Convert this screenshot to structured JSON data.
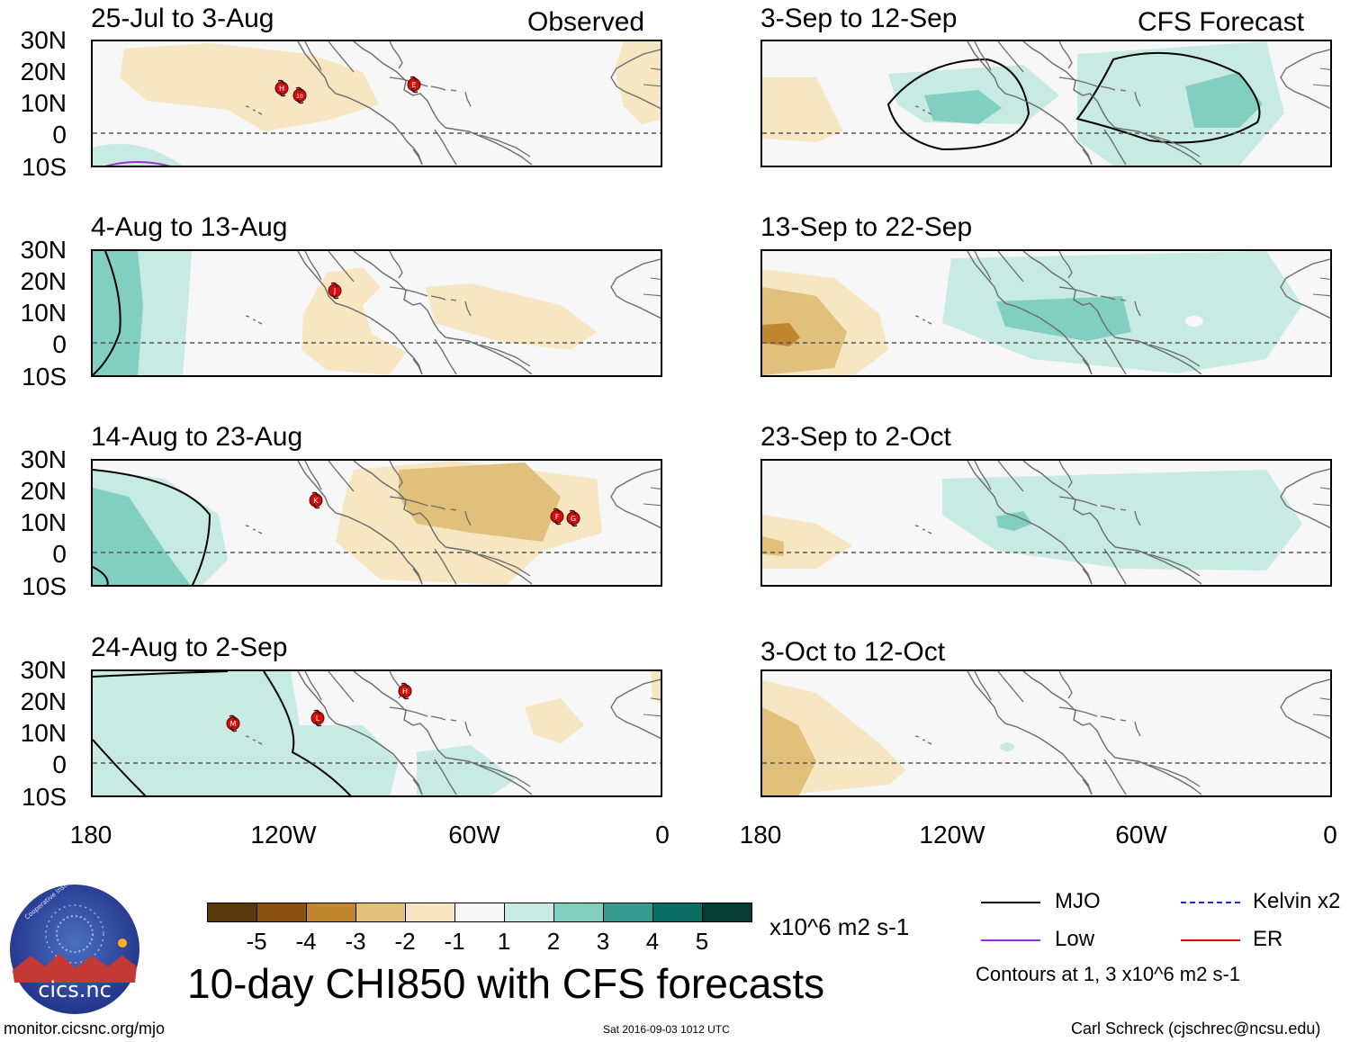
{
  "labels": {
    "observed": "Observed",
    "forecast": "CFS Forecast",
    "lat_ticks": [
      "30N",
      "20N",
      "10N",
      "0",
      "10S"
    ],
    "lon_ticks": [
      "180",
      "120W",
      "60W",
      "0"
    ]
  },
  "panels": [
    {
      "title": "25-Jul to 3-Aug"
    },
    {
      "title": "4-Aug to 13-Aug"
    },
    {
      "title": "14-Aug to 23-Aug"
    },
    {
      "title": "24-Aug to 2-Sep"
    },
    {
      "title": "3-Sep to 12-Sep"
    },
    {
      "title": "13-Sep to 22-Sep"
    },
    {
      "title": "23-Sep to 2-Oct"
    },
    {
      "title": "3-Oct to 12-Oct"
    }
  ],
  "storms": [
    {
      "panel": 0,
      "letter": "H"
    },
    {
      "panel": 0,
      "letter": "10"
    },
    {
      "panel": 0,
      "letter": "E"
    },
    {
      "panel": 1,
      "letter": "J"
    },
    {
      "panel": 2,
      "letter": "K"
    },
    {
      "panel": 2,
      "letter": "F"
    },
    {
      "panel": 2,
      "letter": "G"
    },
    {
      "panel": 3,
      "letter": "M"
    },
    {
      "panel": 3,
      "letter": "L"
    },
    {
      "panel": 3,
      "letter": "H"
    }
  ],
  "colorbar": {
    "colors": [
      "#5a3a0c",
      "#8a5212",
      "#c28630",
      "#e0c07a",
      "#f6e6c2",
      "#f7f7f7",
      "#c7eae2",
      "#81cfc1",
      "#379c8f",
      "#0b6e62",
      "#053d33"
    ],
    "ticks": [
      "-5",
      "-4",
      "-3",
      "-2",
      "-1",
      "1",
      "2",
      "3",
      "4",
      "5"
    ],
    "units": "x10^6 m2 s-1"
  },
  "title": "10-day CHI850 with CFS forecasts",
  "legend": {
    "items": [
      {
        "label": "MJO",
        "color": "#000000"
      },
      {
        "label": "Kelvin x2",
        "color": "#1a2fd0"
      },
      {
        "label": "Low",
        "color": "#9b30d9"
      },
      {
        "label": "ER",
        "color": "#e00000"
      }
    ],
    "note": "Contours at 1, 3 x10^6 m2 s-1"
  },
  "footer": {
    "left": "monitor.cicsnc.org/mjo",
    "center": "Sat 2016-09-03 1012 UTC",
    "right": "Carl Schreck (cjschrec@ncsu.edu)"
  },
  "logo": {
    "text": "cics.nc",
    "ring_text": "Cooperative Institute for Climate and Satellites"
  },
  "colors": {
    "land_outline": "#6a6a6a",
    "equator": "#555555"
  }
}
